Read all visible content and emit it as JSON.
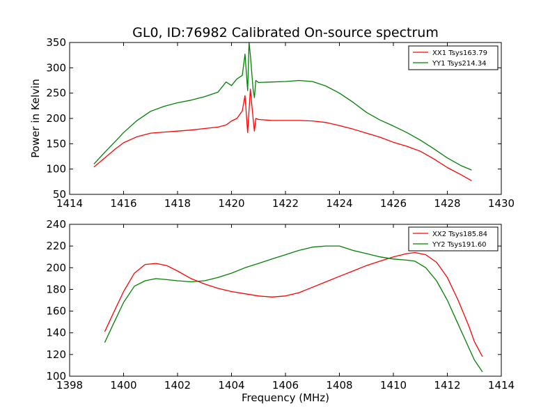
{
  "chart_data": [
    {
      "type": "line",
      "title": "GL0, ID:76982 Calibrated On-source spectrum",
      "xlabel": "",
      "ylabel": "Power in Kelvin",
      "xlim": [
        1414,
        1430
      ],
      "ylim": [
        50,
        350
      ],
      "xticks": [
        "1414",
        "1416",
        "1418",
        "1420",
        "1422",
        "1424",
        "1426",
        "1428",
        "1430"
      ],
      "yticks": [
        "50",
        "100",
        "150",
        "200",
        "250",
        "300",
        "350"
      ],
      "legend_position": "top-right",
      "grid": false,
      "series": [
        {
          "name": "XX1 Tsys163.79",
          "color": "#ff0000",
          "x": [
            1414.9,
            1415.3,
            1415.7,
            1416.0,
            1416.5,
            1417.0,
            1417.5,
            1418.0,
            1418.5,
            1419.0,
            1419.5,
            1419.8,
            1420.0,
            1420.2,
            1420.4,
            1420.5,
            1420.6,
            1420.7,
            1420.8,
            1420.85,
            1420.9,
            1421.0,
            1421.5,
            1422.0,
            1422.5,
            1423.0,
            1423.5,
            1424.0,
            1424.5,
            1425.0,
            1425.5,
            1426.0,
            1426.5,
            1427.0,
            1427.5,
            1428.0,
            1428.5,
            1428.9
          ],
          "y": [
            104,
            122,
            140,
            152,
            164,
            171,
            173,
            175,
            177,
            180,
            183,
            187,
            195,
            200,
            215,
            245,
            172,
            258,
            200,
            175,
            200,
            198,
            196,
            196,
            196,
            195,
            192,
            186,
            179,
            171,
            163,
            153,
            145,
            135,
            120,
            103,
            89,
            77
          ]
        },
        {
          "name": "YY1 Tsys214.34",
          "color": "#008000",
          "x": [
            1414.9,
            1415.3,
            1415.7,
            1416.0,
            1416.5,
            1417.0,
            1417.5,
            1418.0,
            1418.5,
            1419.0,
            1419.5,
            1419.8,
            1420.0,
            1420.2,
            1420.4,
            1420.5,
            1420.6,
            1420.65,
            1420.7,
            1420.8,
            1420.85,
            1420.9,
            1421.0,
            1421.5,
            1422.0,
            1422.5,
            1423.0,
            1423.5,
            1424.0,
            1424.5,
            1425.0,
            1425.5,
            1426.0,
            1426.5,
            1427.0,
            1427.5,
            1428.0,
            1428.5,
            1428.9
          ],
          "y": [
            110,
            133,
            155,
            172,
            196,
            214,
            224,
            231,
            236,
            243,
            252,
            272,
            265,
            278,
            285,
            327,
            255,
            350,
            325,
            258,
            241,
            275,
            271,
            272,
            273,
            275,
            273,
            264,
            250,
            232,
            212,
            197,
            185,
            172,
            157,
            140,
            122,
            107,
            98
          ]
        }
      ]
    },
    {
      "type": "line",
      "title": "",
      "xlabel": "Frequency (MHz)",
      "ylabel": "",
      "xlim": [
        1398,
        1414
      ],
      "ylim": [
        100,
        240
      ],
      "xticks": [
        "1398",
        "1400",
        "1402",
        "1404",
        "1406",
        "1408",
        "1410",
        "1412",
        "1414"
      ],
      "yticks": [
        "100",
        "120",
        "140",
        "160",
        "180",
        "200",
        "220",
        "240"
      ],
      "legend_position": "top-right",
      "grid": false,
      "series": [
        {
          "name": "XX2 Tsys185.84",
          "color": "#ff0000",
          "x": [
            1399.3,
            1399.6,
            1400.0,
            1400.4,
            1400.8,
            1401.2,
            1401.6,
            1402.0,
            1402.5,
            1403.0,
            1403.5,
            1404.0,
            1404.5,
            1405.0,
            1405.5,
            1406.0,
            1406.5,
            1407.0,
            1407.5,
            1408.0,
            1408.5,
            1409.0,
            1409.5,
            1410.0,
            1410.5,
            1410.8,
            1411.2,
            1411.6,
            1412.0,
            1412.4,
            1412.8,
            1413.0,
            1413.3
          ],
          "y": [
            141,
            157,
            178,
            195,
            203,
            204,
            202,
            197,
            190,
            185,
            181,
            178,
            176,
            174,
            173,
            174,
            177,
            182,
            187,
            192,
            197,
            202,
            206,
            210,
            213,
            214,
            212,
            205,
            191,
            170,
            146,
            132,
            118
          ]
        },
        {
          "name": "YY2 Tsys191.60",
          "color": "#008000",
          "x": [
            1399.3,
            1399.6,
            1400.0,
            1400.4,
            1400.8,
            1401.2,
            1401.6,
            1402.0,
            1402.5,
            1403.0,
            1403.5,
            1404.0,
            1404.5,
            1405.0,
            1405.5,
            1406.0,
            1406.5,
            1407.0,
            1407.5,
            1408.0,
            1408.5,
            1409.0,
            1409.5,
            1410.0,
            1410.5,
            1410.8,
            1411.2,
            1411.6,
            1412.0,
            1412.4,
            1412.8,
            1413.0,
            1413.3
          ],
          "y": [
            131,
            147,
            168,
            183,
            188,
            190,
            189,
            188,
            187,
            188,
            191,
            195,
            200,
            204,
            208,
            212,
            216,
            219,
            220,
            220,
            216,
            213,
            210,
            208,
            207,
            206,
            200,
            188,
            170,
            148,
            126,
            115,
            104
          ]
        }
      ]
    }
  ]
}
